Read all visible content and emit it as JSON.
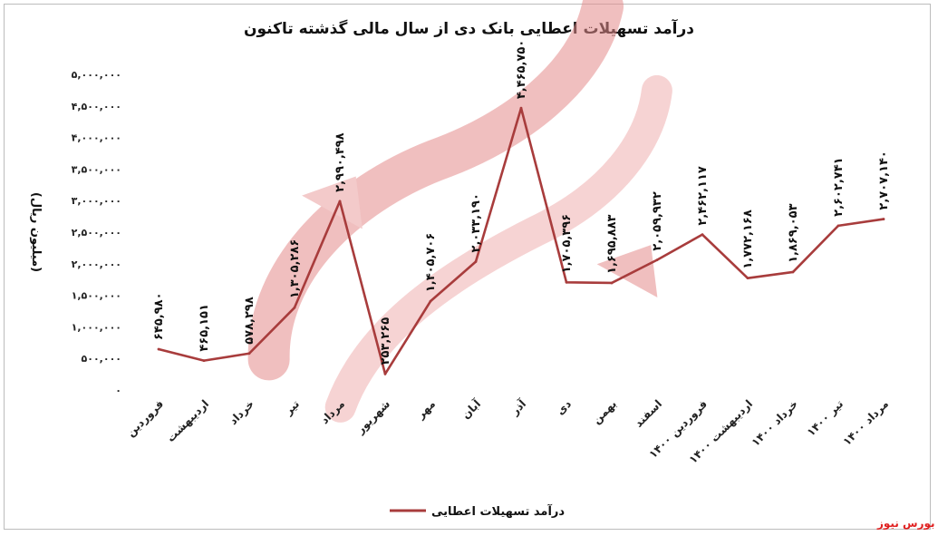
{
  "chart_data": {
    "type": "line",
    "title": "درآمد تسهیلات اعطایی بانک دی از سال مالی گذشته تاکنون",
    "ylabel": "(میلیون ریال)",
    "xlabel": "",
    "ylim": [
      0,
      5000000
    ],
    "y_ticks": [
      0,
      500000,
      1000000,
      1500000,
      2000000,
      2500000,
      3000000,
      3500000,
      4000000,
      4500000,
      5000000
    ],
    "y_tick_labels": [
      "۰",
      "۵۰۰,۰۰۰",
      "۱,۰۰۰,۰۰۰",
      "۱,۵۰۰,۰۰۰",
      "۲,۰۰۰,۰۰۰",
      "۲,۵۰۰,۰۰۰",
      "۳,۰۰۰,۰۰۰",
      "۳,۵۰۰,۰۰۰",
      "۴,۰۰۰,۰۰۰",
      "۴,۵۰۰,۰۰۰",
      "۵,۰۰۰,۰۰۰"
    ],
    "categories": [
      "فروردین",
      "اردیبهشت",
      "خرداد",
      "تیر",
      "مرداد",
      "شهریور",
      "مهر",
      "آبان",
      "آذر",
      "دی",
      "بهمن",
      "اسفند",
      "فروردین ۱۴۰۰",
      "اردیبهشت ۱۴۰۰",
      "خرداد ۱۴۰۰",
      "تیر ۱۴۰۰",
      "مرداد ۱۴۰۰"
    ],
    "series": [
      {
        "name": "درآمد تسهیلات اعطایی",
        "color": "#a83c3c",
        "values": [
          645980,
          465151,
          578298,
          1305286,
          2990498,
          253265,
          1405706,
          2033190,
          4465750,
          1705396,
          1695883,
          2059932,
          2462117,
          1772168,
          1869053,
          2602741,
          2707140
        ],
        "labels": [
          "۶۴۵,۹۸۰",
          "۴۶۵,۱۵۱",
          "۵۷۸,۲۹۸",
          "۱,۳۰۵,۲۸۶",
          "۲,۹۹۰,۴۹۸",
          "۲۵۳,۲۶۵",
          "۱,۴۰۵,۷۰۶",
          "۲,۰۳۳,۱۹۰",
          "۴,۴۶۵,۷۵۰",
          "۱,۷۰۵,۳۹۶",
          "۱,۶۹۵,۸۸۳",
          "۲,۰۵۹,۹۳۲",
          "۲,۴۶۲,۱۱۷",
          "۱,۷۷۲,۱۶۸",
          "۱,۸۶۹,۰۵۳",
          "۲,۶۰۲,۷۴۱",
          "۲,۷۰۷,۱۴۰"
        ]
      }
    ],
    "grid": false,
    "legend_position": "bottom"
  },
  "watermark": "بورس نیوز",
  "source": "بورس نیوز"
}
